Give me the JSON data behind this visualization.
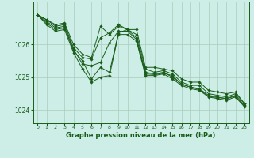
{
  "background_color": "#cceee6",
  "grid_color": "#aaccbb",
  "line_color": "#1a5c1a",
  "marker_color": "#1a5c1a",
  "xlabel": "Graphe pression niveau de la mer (hPa)",
  "xlim": [
    -0.5,
    23.5
  ],
  "ylim": [
    1023.6,
    1027.3
  ],
  "yticks": [
    1024,
    1025,
    1026
  ],
  "xticks": [
    0,
    1,
    2,
    3,
    4,
    5,
    6,
    7,
    8,
    9,
    10,
    11,
    12,
    13,
    14,
    15,
    16,
    17,
    18,
    19,
    20,
    21,
    22,
    23
  ],
  "series": [
    [
      1026.9,
      1026.75,
      1026.6,
      1026.65,
      1026.0,
      1025.7,
      1025.6,
      1026.55,
      1026.3,
      1026.55,
      1026.45,
      1026.45,
      1025.3,
      1025.3,
      1025.25,
      1025.2,
      1024.95,
      1024.85,
      1024.85,
      1024.6,
      1024.55,
      1024.5,
      1024.55,
      1024.2
    ],
    [
      1026.9,
      1026.75,
      1026.55,
      1026.6,
      1025.9,
      1025.6,
      1025.55,
      1026.2,
      1026.35,
      1026.6,
      1026.45,
      1026.3,
      1025.25,
      1025.15,
      1025.2,
      1025.1,
      1024.85,
      1024.75,
      1024.75,
      1024.5,
      1024.45,
      1024.4,
      1024.5,
      1024.2
    ],
    [
      1026.9,
      1026.7,
      1026.5,
      1026.55,
      1025.8,
      1025.5,
      1024.95,
      1025.3,
      1025.15,
      1026.35,
      1026.45,
      1026.2,
      1025.15,
      1025.1,
      1025.15,
      1025.0,
      1024.8,
      1024.7,
      1024.65,
      1024.45,
      1024.4,
      1024.35,
      1024.45,
      1024.15
    ],
    [
      1026.9,
      1026.6,
      1026.4,
      1026.45,
      1025.75,
      1025.25,
      1024.85,
      1025.0,
      1025.05,
      1026.3,
      1026.3,
      1026.1,
      1025.05,
      1025.05,
      1025.1,
      1024.95,
      1024.75,
      1024.65,
      1024.6,
      1024.4,
      1024.35,
      1024.3,
      1024.4,
      1024.1
    ],
    [
      1026.9,
      1026.65,
      1026.45,
      1026.5,
      1025.85,
      1025.4,
      1025.35,
      1025.45,
      1026.05,
      1026.4,
      1026.4,
      1026.15,
      1025.1,
      1025.08,
      1025.12,
      1025.05,
      1024.78,
      1024.7,
      1024.62,
      1024.42,
      1024.38,
      1024.35,
      1024.42,
      1024.12
    ]
  ]
}
